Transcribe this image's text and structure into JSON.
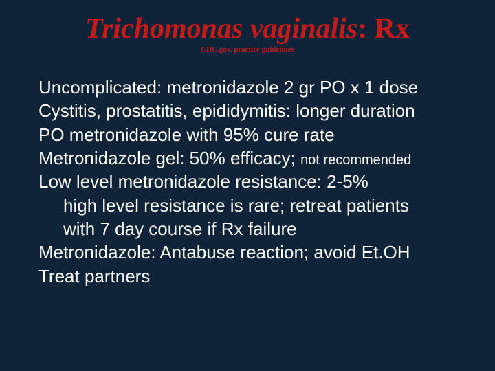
{
  "colors": {
    "background": "#0f2438",
    "title": "#c91a1a",
    "body": "#fdfdfd"
  },
  "typography": {
    "title_font": "Comic Sans MS",
    "title_size_pt": 42,
    "subtitle_size_pt": 11,
    "body_font": "Arial",
    "body_size_pt": 26,
    "small_size_pt": 20
  },
  "title_italic": "Trichomonas vaginalis",
  "title_rest": ": Rx",
  "subtitle": "CDC.gov, practice guidelines",
  "lines": {
    "l1": "Uncomplicated: metronidazole 2 gr PO x 1 dose",
    "l2": "Cystitis, prostatitis, epididymitis: longer duration",
    "l3": "PO metronidazole with 95% cure rate",
    "l4a": "Metronidazole gel: 50% efficacy; ",
    "l4b": "not recommended",
    "l5": "Low level metronidazole resistance: 2-5%",
    "l6": "high level resistance is rare; retreat patients",
    "l7": "with 7 day course if Rx failure",
    "l8": "Metronidazole: Antabuse reaction; avoid Et.OH",
    "l9": "Treat partners"
  }
}
